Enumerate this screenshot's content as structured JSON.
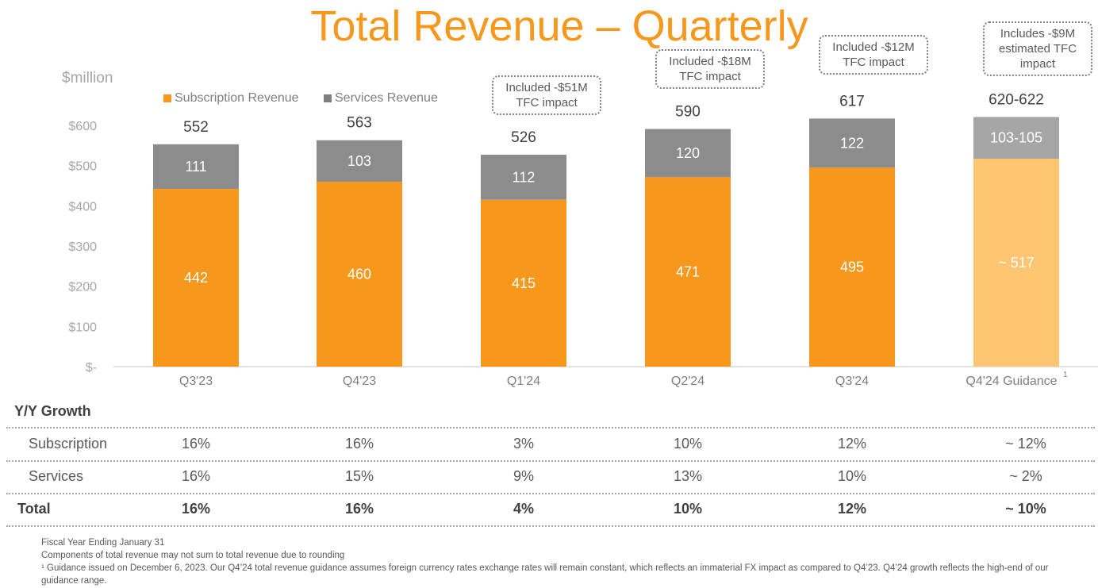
{
  "chart_data": {
    "type": "bar",
    "stacked": true,
    "title": "Total Revenue – Quarterly",
    "ylabel": "$million",
    "ylim": [
      0,
      600
    ],
    "yticks": [
      "$-",
      "$100",
      "$200",
      "$300",
      "$400",
      "$500",
      "$600"
    ],
    "categories": [
      "Q3'23",
      "Q4'23",
      "Q1'24",
      "Q2'24",
      "Q3'24",
      "Q4'24 Guidance"
    ],
    "category_superscripts": [
      "",
      "",
      "",
      "",
      "",
      "1"
    ],
    "series": [
      {
        "name": "Subscription Revenue",
        "color": "#F7981D",
        "values": [
          442,
          460,
          415,
          471,
          495,
          517
        ],
        "labels": [
          "442",
          "460",
          "415",
          "471",
          "495",
          "~ 517"
        ]
      },
      {
        "name": "Services Revenue",
        "color": "#8C8C8C",
        "values": [
          111,
          103,
          112,
          120,
          122,
          104
        ],
        "labels": [
          "111",
          "103",
          "112",
          "120",
          "122",
          "103-105"
        ]
      }
    ],
    "totals": [
      "552",
      "563",
      "526",
      "590",
      "617",
      "620-622"
    ],
    "guidance_colors": {
      "subscription": "#FFC570",
      "services": "#A6A6A6"
    },
    "annotations": [
      {
        "category": "Q1'24",
        "text": [
          "Included -$51M",
          "TFC impact"
        ]
      },
      {
        "category": "Q2'24",
        "text": [
          "Included -$18M",
          "TFC impact"
        ]
      },
      {
        "category": "Q3'24",
        "text": [
          "Included -$12M",
          "TFC impact"
        ]
      },
      {
        "category": "Q4'24 Guidance",
        "text": [
          "Includes -$9M",
          "estimated TFC",
          "impact"
        ]
      }
    ],
    "legend_position": "top-left",
    "grid": false
  },
  "table": {
    "heading": "Y/Y Growth",
    "rows": [
      {
        "label": "Subscription",
        "values": [
          "16%",
          "16%",
          "3%",
          "10%",
          "12%",
          "~ 12%"
        ]
      },
      {
        "label": "Services",
        "values": [
          "16%",
          "15%",
          "9%",
          "13%",
          "10%",
          "~ 2%"
        ]
      },
      {
        "label": "Total",
        "values": [
          "16%",
          "16%",
          "4%",
          "10%",
          "12%",
          "~ 10%"
        ],
        "bold": true
      }
    ]
  },
  "notes": [
    "Fiscal Year Ending January 31",
    "Components of total revenue may not sum to total revenue due to rounding",
    "¹ Guidance issued on December 6, 2023. Our Q4’24 total revenue guidance assumes foreign currency rates exchange rates will remain constant, which reflects an immaterial FX impact as compared to Q4’23. Q4’24 growth reflects the high-end of our guidance range."
  ]
}
